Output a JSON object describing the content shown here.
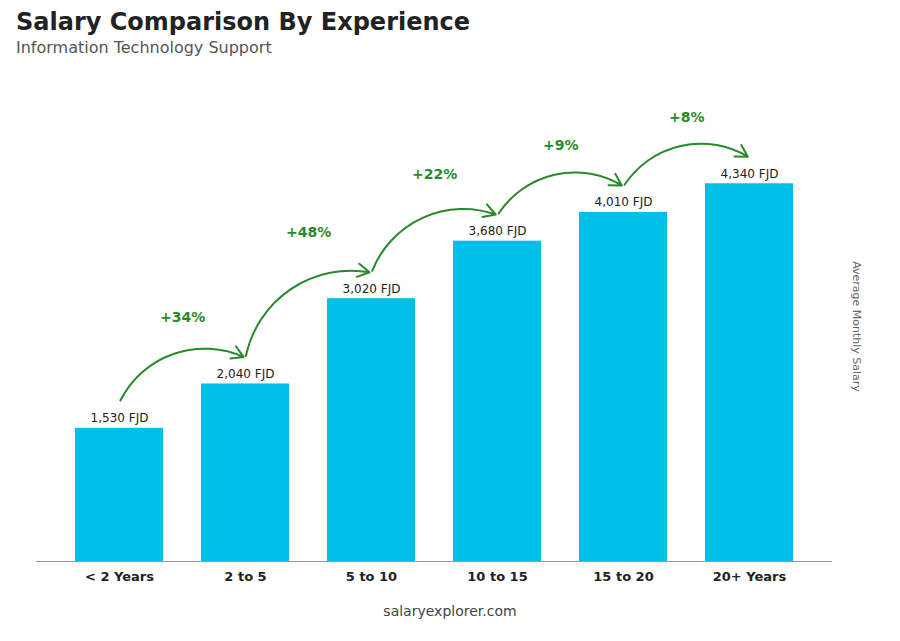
{
  "chart_data": {
    "type": "bar",
    "title": "Salary Comparison By Experience",
    "subtitle": "Information Technology Support",
    "ylabel": "Average Monthly Salary",
    "categories": [
      "< 2 Years",
      "2 to 5",
      "5 to 10",
      "10 to 15",
      "15 to 20",
      "20+ Years"
    ],
    "values": [
      1530,
      2040,
      3020,
      3680,
      4010,
      4340
    ],
    "value_labels": [
      "1,530 FJD",
      "2,040 FJD",
      "3,020 FJD",
      "3,680 FJD",
      "4,010 FJD",
      "4,340 FJD"
    ],
    "data_labels": true,
    "pct_labels": [
      "+34%",
      "+48%",
      "+22%",
      "+9%",
      "+8%"
    ],
    "annotations": [
      "salary",
      "explorer",
      ".com"
    ],
    "color": "#00c0e8",
    "ylim": [
      0,
      5400
    ],
    "tick_labels": "x",
    "grid": false
  }
}
